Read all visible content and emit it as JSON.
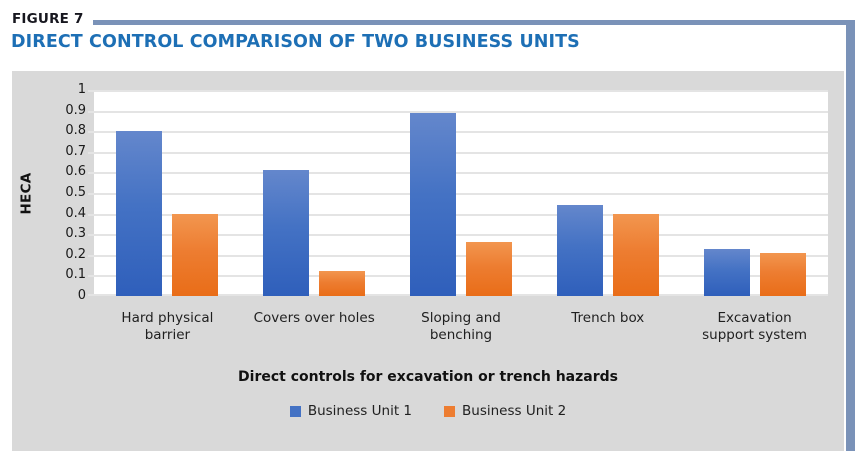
{
  "figure": {
    "label": "FIGURE 7",
    "title": "DIRECT CONTROL COMPARISON OF TWO BUSINESS UNITS"
  },
  "colors": {
    "title_blue": "#1d6fb5",
    "accent_band": "#7a92b8",
    "panel_gray": "#d9d9d9",
    "series1": "#4472c4",
    "series2": "#ed7d31"
  },
  "chart_data": {
    "type": "bar",
    "categories": [
      "Hard physical barrier",
      "Covers over holes",
      "Sloping and benching",
      "Trench box",
      "Excavation support system"
    ],
    "category_label_lines": [
      [
        "Hard physical",
        "barrier"
      ],
      [
        "Covers over holes"
      ],
      [
        "Sloping and",
        "benching"
      ],
      [
        "Trench box"
      ],
      [
        "Excavation",
        "support system"
      ]
    ],
    "series": [
      {
        "name": "Business Unit 1",
        "color": "#4472c4",
        "values": [
          0.8,
          0.61,
          0.89,
          0.44,
          0.23
        ]
      },
      {
        "name": "Business Unit 2",
        "color": "#ed7d31",
        "values": [
          0.4,
          0.12,
          0.26,
          0.4,
          0.21
        ]
      }
    ],
    "xlabel": "Direct controls for excavation or trench hazards",
    "ylabel": "HECA",
    "ylim": [
      0,
      1
    ],
    "ytick_step": 0.1,
    "ytick_labels": [
      "0",
      "0.1",
      "0.2",
      "0.3",
      "0.4",
      "0.5",
      "0.6",
      "0.7",
      "0.8",
      "0.9",
      "1"
    ],
    "grid": true,
    "legend_position": "bottom"
  }
}
